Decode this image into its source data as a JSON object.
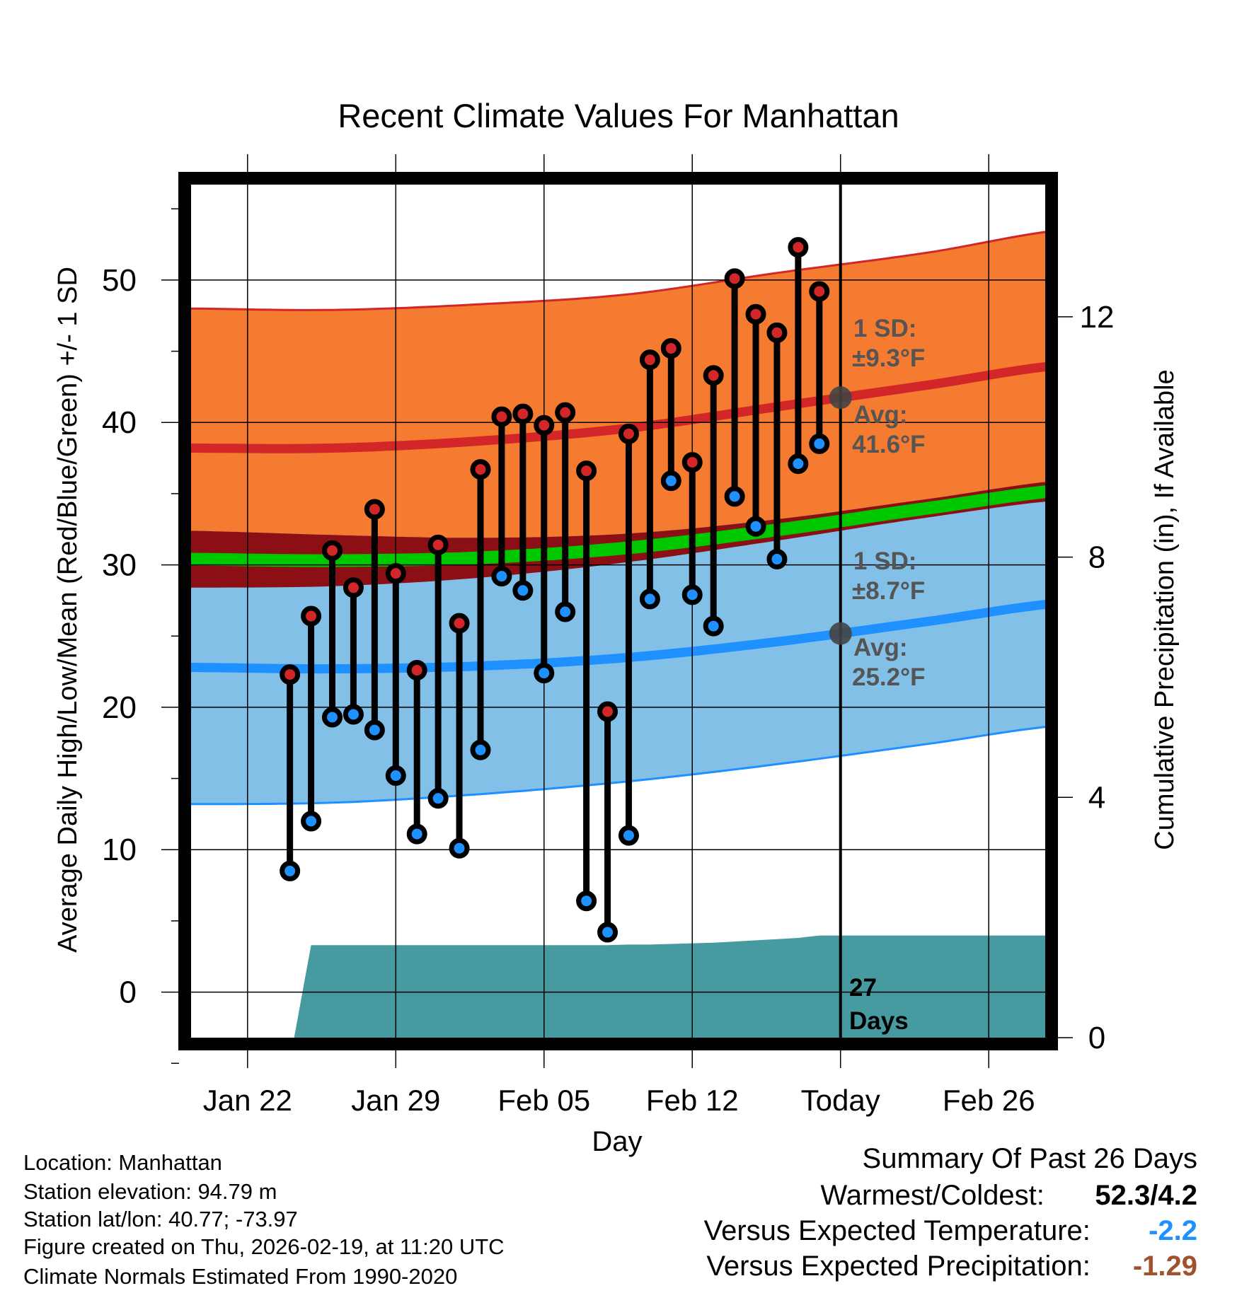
{
  "chart_data": {
    "type": "line",
    "title": "Recent Climate Values For Manhattan",
    "xlabel": "Day",
    "ylabel": "Average Daily High/Low/Mean (Red/Blue/Green) +/- 1 SD",
    "ylabel_right": "Cumulative Precipitation (in), If Available",
    "ylim": [
      -3.2,
      56.7
    ],
    "ylim_right": [
      0,
      14.2
    ],
    "yticks": [
      0,
      10,
      20,
      30,
      40,
      50
    ],
    "yticks_right": [
      0,
      4,
      8,
      12
    ],
    "xticks": [
      {
        "day": 0,
        "label": "Jan 22"
      },
      {
        "day": 7,
        "label": "Jan 29"
      },
      {
        "day": 14,
        "label": "Feb 05"
      },
      {
        "day": 21,
        "label": "Feb 12"
      },
      {
        "day": 28,
        "label": "Today"
      },
      {
        "day": 35,
        "label": "Feb 26"
      }
    ],
    "x_range_days_from_jan22": [
      -2.7,
      37.7
    ],
    "today_day": 28,
    "observed": {
      "days": [
        2,
        3,
        4,
        5,
        6,
        7,
        8,
        9,
        10,
        11,
        12,
        13,
        14,
        15,
        16,
        17,
        18,
        19,
        20,
        21,
        22,
        23,
        24,
        25,
        26,
        27
      ],
      "dates": [
        "Jan 24",
        "Jan 25",
        "Jan 26",
        "Jan 27",
        "Jan 28",
        "Jan 29",
        "Jan 30",
        "Jan 31",
        "Feb 01",
        "Feb 02",
        "Feb 03",
        "Feb 04",
        "Feb 05",
        "Feb 06",
        "Feb 07",
        "Feb 08",
        "Feb 09",
        "Feb 10",
        "Feb 11",
        "Feb 12",
        "Feb 13",
        "Feb 14",
        "Feb 15",
        "Feb 16",
        "Feb 17",
        "Feb 18"
      ],
      "high": [
        22.3,
        26.4,
        31.0,
        28.4,
        33.9,
        29.4,
        22.6,
        31.4,
        25.9,
        36.7,
        40.4,
        40.6,
        39.8,
        40.7,
        36.6,
        19.7,
        39.2,
        44.4,
        45.2,
        37.2,
        43.3,
        50.1,
        47.6,
        46.3,
        52.3,
        49.2
      ],
      "low": [
        8.5,
        12.0,
        19.3,
        19.5,
        18.4,
        15.2,
        11.1,
        13.6,
        10.1,
        17.0,
        29.2,
        28.2,
        22.4,
        26.7,
        6.4,
        4.2,
        11.0,
        27.6,
        35.9,
        27.9,
        25.7,
        34.8,
        32.7,
        30.4,
        37.1,
        38.5
      ],
      "cum_precip": [
        0,
        1.54,
        1.54,
        1.54,
        1.54,
        1.54,
        1.54,
        1.54,
        1.54,
        1.54,
        1.54,
        1.54,
        1.54,
        1.54,
        1.54,
        1.54,
        1.55,
        1.55,
        1.56,
        1.57,
        1.58,
        1.6,
        1.62,
        1.64,
        1.66,
        1.7
      ]
    },
    "normals": {
      "days": [
        -3,
        4,
        11,
        18,
        25,
        32,
        39
      ],
      "high_avg": [
        38.2,
        38.2,
        38.7,
        39.6,
        41.1,
        42.6,
        44.1
      ],
      "high_upper": [
        48.0,
        47.9,
        48.3,
        49.0,
        50.5,
        51.9,
        53.6
      ],
      "low_avg": [
        22.8,
        22.7,
        22.9,
        23.5,
        24.6,
        26.0,
        27.4
      ],
      "low_lower": [
        13.2,
        13.3,
        13.9,
        14.8,
        16.0,
        17.4,
        18.8
      ]
    },
    "annotations": {
      "high_sd_label": "1 SD:",
      "high_sd_value": "±9.3°F",
      "high_avg_label": "Avg:",
      "high_avg_value": "41.6°F",
      "low_sd_label": "1 SD:",
      "low_sd_value": "±8.7°F",
      "low_avg_label": "Avg:",
      "low_avg_value": "25.2°F",
      "days_count": "27",
      "days_word": "Days"
    },
    "colors": {
      "high_band": "#f47b2f",
      "high_line": "#d22628",
      "low_band": "#82c0e8",
      "low_line": "#1e90ff",
      "overlap": "#8b0f14",
      "mean": "#00c800",
      "precip": "#469aa0",
      "annotation": "#555555"
    }
  },
  "info": {
    "location": "Location: Manhattan",
    "elevation": "Station elevation: 94.79 m",
    "latlon": "Station lat/lon: 40.77; -73.97",
    "created": "Figure created on Thu, 2026-02-19, at 11:20 UTC",
    "normals": "Climate Normals Estimated From 1990-2020"
  },
  "summary": {
    "title": "Summary Of Past 26 Days",
    "warm_cold_label": "Warmest/Coldest:",
    "warm_cold_value": "52.3/4.2",
    "temp_label": "Versus Expected Temperature:",
    "temp_value": "-2.2",
    "temp_color": "#1e90ff",
    "precip_label": "Versus Expected Precipitation:",
    "precip_value": "-1.29",
    "precip_color": "#a0522d"
  }
}
